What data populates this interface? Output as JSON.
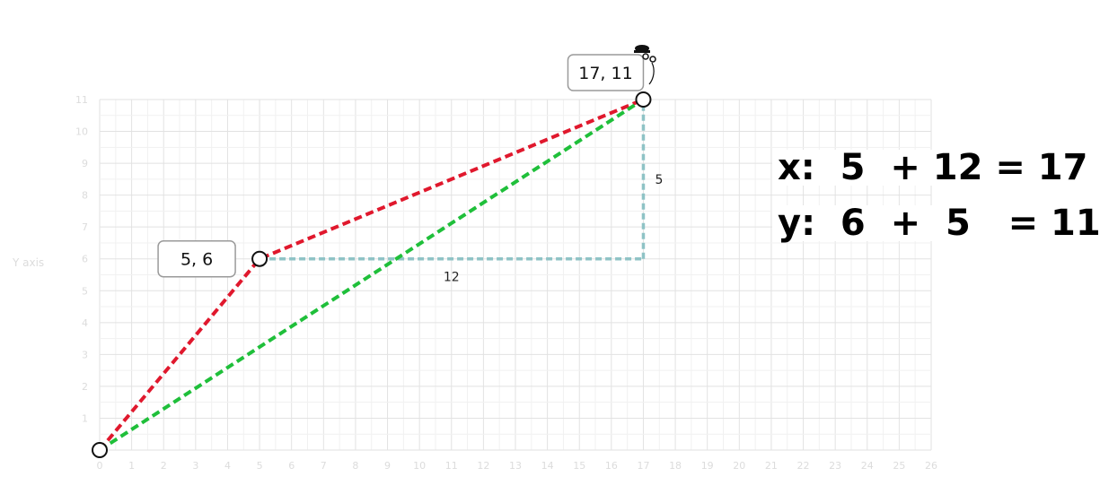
{
  "chart_data": {
    "type": "line",
    "ylabel": "Y axis",
    "xlim": [
      0,
      26
    ],
    "ylim": [
      0,
      11
    ],
    "x_ticks": [
      "0",
      "1",
      "2",
      "3",
      "4",
      "5",
      "6",
      "7",
      "8",
      "9",
      "10",
      "11",
      "12",
      "13",
      "14",
      "15",
      "16",
      "17",
      "18",
      "19",
      "20",
      "21",
      "22",
      "23",
      "24",
      "25",
      "26"
    ],
    "y_ticks": [
      "1",
      "2",
      "3",
      "4",
      "5",
      "6",
      "7",
      "8",
      "9",
      "10",
      "11"
    ],
    "grid": true,
    "points": [
      {
        "x": 0,
        "y": 0,
        "label": ""
      },
      {
        "x": 5,
        "y": 6,
        "label": "5, 6"
      },
      {
        "x": 17,
        "y": 11,
        "label": "17, 11"
      }
    ],
    "series": [
      {
        "color": "#e0182d",
        "style": "dashed",
        "x": [
          0,
          5,
          17
        ],
        "y": [
          0,
          6,
          11
        ]
      },
      {
        "color": "#1fbf3a",
        "style": "dashed",
        "x": [
          0,
          17
        ],
        "y": [
          0,
          11
        ]
      }
    ],
    "components": {
      "color": "#8fc3c6",
      "horizontal": {
        "from": [
          5,
          6
        ],
        "to": [
          17,
          6
        ],
        "label": "12"
      },
      "vertical": {
        "from": [
          17,
          6
        ],
        "to": [
          17,
          11
        ],
        "label": "5"
      }
    }
  },
  "equations": {
    "x_line": "x:  5  + 12 = 17",
    "y_line": "y:  6  +  5   = 11"
  },
  "icons": {
    "mascot": "mascot-icon"
  }
}
